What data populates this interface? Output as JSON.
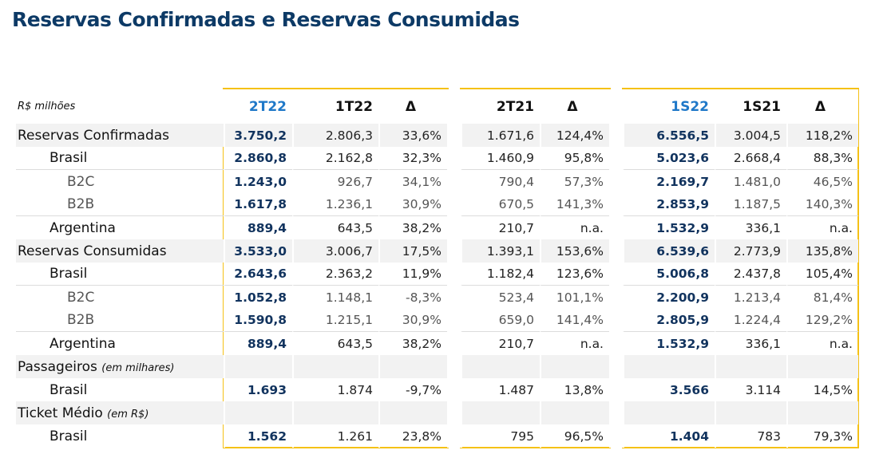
{
  "title": "Reservas Confirmadas e Reservas Consumidas",
  "unit_label": "R$ milhões",
  "colors": {
    "title": "#0d3a66",
    "highlight_header": "#1f78c8",
    "box_border": "#f5c116",
    "bold_value": "#11335e",
    "row_shade": "#f2f2f2"
  },
  "headers": [
    "2T22",
    "1T22",
    "Δ",
    "2T21",
    "Δ",
    "1S22",
    "1S21",
    "Δ"
  ],
  "rows": [
    {
      "label": "Reservas Confirmadas",
      "note": "",
      "level": 0,
      "values": [
        "3.750,2",
        "2.806,3",
        "33,6%",
        "1.671,6",
        "124,4%",
        "6.556,5",
        "3.004,5",
        "118,2%"
      ]
    },
    {
      "label": "Brasil",
      "note": "",
      "level": 1,
      "values": [
        "2.860,8",
        "2.162,8",
        "32,3%",
        "1.460,9",
        "95,8%",
        "5.023,6",
        "2.668,4",
        "88,3%"
      ]
    },
    {
      "label": "B2C",
      "note": "",
      "level": 2,
      "values": [
        "1.243,0",
        "926,7",
        "34,1%",
        "790,4",
        "57,3%",
        "2.169,7",
        "1.481,0",
        "46,5%"
      ]
    },
    {
      "label": "B2B",
      "note": "",
      "level": 2,
      "values": [
        "1.617,8",
        "1.236,1",
        "30,9%",
        "670,5",
        "141,3%",
        "2.853,9",
        "1.187,5",
        "140,3%"
      ]
    },
    {
      "label": "Argentina",
      "note": "",
      "level": 1,
      "values": [
        "889,4",
        "643,5",
        "38,2%",
        "210,7",
        "n.a.",
        "1.532,9",
        "336,1",
        "n.a."
      ]
    },
    {
      "label": "Reservas Consumidas",
      "note": "",
      "level": 0,
      "values": [
        "3.533,0",
        "3.006,7",
        "17,5%",
        "1.393,1",
        "153,6%",
        "6.539,6",
        "2.773,9",
        "135,8%"
      ]
    },
    {
      "label": "Brasil",
      "note": "",
      "level": 1,
      "values": [
        "2.643,6",
        "2.363,2",
        "11,9%",
        "1.182,4",
        "123,6%",
        "5.006,8",
        "2.437,8",
        "105,4%"
      ]
    },
    {
      "label": "B2C",
      "note": "",
      "level": 2,
      "values": [
        "1.052,8",
        "1.148,1",
        "-8,3%",
        "523,4",
        "101,1%",
        "2.200,9",
        "1.213,4",
        "81,4%"
      ]
    },
    {
      "label": "B2B",
      "note": "",
      "level": 2,
      "values": [
        "1.590,8",
        "1.215,1",
        "30,9%",
        "659,0",
        "141,4%",
        "2.805,9",
        "1.224,4",
        "129,2%"
      ]
    },
    {
      "label": "Argentina",
      "note": "",
      "level": 1,
      "values": [
        "889,4",
        "643,5",
        "38,2%",
        "210,7",
        "n.a.",
        "1.532,9",
        "336,1",
        "n.a."
      ]
    },
    {
      "label": "Passageiros",
      "note": "(em milhares)",
      "level": 0,
      "values": [
        "",
        "",
        "",
        "",
        "",
        "",
        "",
        ""
      ]
    },
    {
      "label": "Brasil",
      "note": "",
      "level": 1,
      "values": [
        "1.693",
        "1.874",
        "-9,7%",
        "1.487",
        "13,8%",
        "3.566",
        "3.114",
        "14,5%"
      ]
    },
    {
      "label": "Ticket Médio",
      "note": "(em R$)",
      "level": 0,
      "values": [
        "",
        "",
        "",
        "",
        "",
        "",
        "",
        ""
      ]
    },
    {
      "label": "Brasil",
      "note": "",
      "level": 1,
      "values": [
        "1.562",
        "1.261",
        "23,8%",
        "795",
        "96,5%",
        "1.404",
        "783",
        "79,3%"
      ]
    }
  ]
}
